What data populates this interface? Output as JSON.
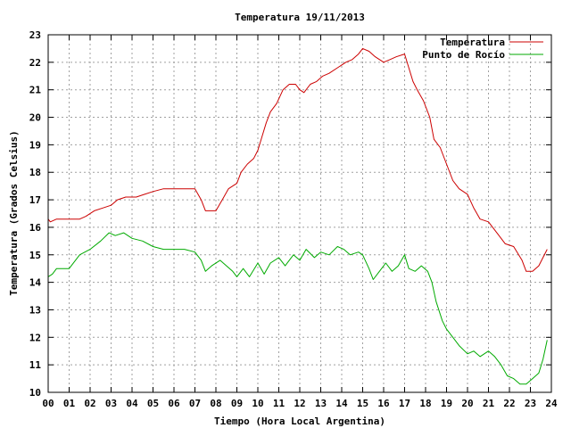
{
  "chart_data": {
    "type": "line",
    "title": "Temperatura 19/11/2013",
    "xlabel": "Tiempo (Hora Local Argentina)",
    "ylabel": "Temperatura (Grados Celsius)",
    "xlim": [
      0,
      24
    ],
    "ylim": [
      10,
      23
    ],
    "x_ticks": [
      "00",
      "01",
      "02",
      "03",
      "04",
      "05",
      "06",
      "07",
      "08",
      "09",
      "10",
      "11",
      "12",
      "13",
      "14",
      "15",
      "16",
      "17",
      "18",
      "19",
      "20",
      "21",
      "22",
      "23",
      "24"
    ],
    "y_ticks": [
      "10",
      "11",
      "12",
      "13",
      "14",
      "15",
      "16",
      "17",
      "18",
      "19",
      "20",
      "21",
      "22",
      "23"
    ],
    "grid": true,
    "legend_position": "top-right",
    "series": [
      {
        "name": "Temperatura",
        "color": "#cc0000",
        "points": [
          [
            0.0,
            16.3
          ],
          [
            0.1,
            16.2
          ],
          [
            0.4,
            16.3
          ],
          [
            1.0,
            16.3
          ],
          [
            1.5,
            16.3
          ],
          [
            1.8,
            16.4
          ],
          [
            2.2,
            16.6
          ],
          [
            2.6,
            16.7
          ],
          [
            3.0,
            16.8
          ],
          [
            3.3,
            17.0
          ],
          [
            3.7,
            17.1
          ],
          [
            4.2,
            17.1
          ],
          [
            4.6,
            17.2
          ],
          [
            5.0,
            17.3
          ],
          [
            5.5,
            17.4
          ],
          [
            6.0,
            17.4
          ],
          [
            6.5,
            17.4
          ],
          [
            7.0,
            17.4
          ],
          [
            7.3,
            17.0
          ],
          [
            7.5,
            16.6
          ],
          [
            8.0,
            16.6
          ],
          [
            8.3,
            17.0
          ],
          [
            8.6,
            17.4
          ],
          [
            9.0,
            17.6
          ],
          [
            9.2,
            18.0
          ],
          [
            9.5,
            18.3
          ],
          [
            9.8,
            18.5
          ],
          [
            10.0,
            18.8
          ],
          [
            10.2,
            19.3
          ],
          [
            10.4,
            19.8
          ],
          [
            10.6,
            20.2
          ],
          [
            10.9,
            20.5
          ],
          [
            11.2,
            21.0
          ],
          [
            11.5,
            21.2
          ],
          [
            11.8,
            21.2
          ],
          [
            12.0,
            21.0
          ],
          [
            12.2,
            20.9
          ],
          [
            12.5,
            21.2
          ],
          [
            12.8,
            21.3
          ],
          [
            13.1,
            21.5
          ],
          [
            13.4,
            21.6
          ],
          [
            13.8,
            21.8
          ],
          [
            14.2,
            22.0
          ],
          [
            14.5,
            22.1
          ],
          [
            14.8,
            22.3
          ],
          [
            15.0,
            22.5
          ],
          [
            15.3,
            22.4
          ],
          [
            15.6,
            22.2
          ],
          [
            16.0,
            22.0
          ],
          [
            16.3,
            22.1
          ],
          [
            16.6,
            22.2
          ],
          [
            17.0,
            22.3
          ],
          [
            17.2,
            21.8
          ],
          [
            17.4,
            21.3
          ],
          [
            17.6,
            21.0
          ],
          [
            17.9,
            20.6
          ],
          [
            18.2,
            20.0
          ],
          [
            18.4,
            19.2
          ],
          [
            18.7,
            18.9
          ],
          [
            19.0,
            18.3
          ],
          [
            19.3,
            17.7
          ],
          [
            19.6,
            17.4
          ],
          [
            20.0,
            17.2
          ],
          [
            20.3,
            16.7
          ],
          [
            20.6,
            16.3
          ],
          [
            21.0,
            16.2
          ],
          [
            21.4,
            15.8
          ],
          [
            21.8,
            15.4
          ],
          [
            22.2,
            15.3
          ],
          [
            22.6,
            14.8
          ],
          [
            22.8,
            14.4
          ],
          [
            23.1,
            14.4
          ],
          [
            23.4,
            14.6
          ],
          [
            23.6,
            14.9
          ],
          [
            23.8,
            15.2
          ]
        ]
      },
      {
        "name": "Punto de Rocío",
        "color": "#00aa00",
        "points": [
          [
            0.0,
            14.2
          ],
          [
            0.2,
            14.3
          ],
          [
            0.4,
            14.5
          ],
          [
            1.0,
            14.5
          ],
          [
            1.5,
            15.0
          ],
          [
            2.0,
            15.2
          ],
          [
            2.5,
            15.5
          ],
          [
            2.9,
            15.8
          ],
          [
            3.2,
            15.7
          ],
          [
            3.6,
            15.8
          ],
          [
            4.0,
            15.6
          ],
          [
            4.5,
            15.5
          ],
          [
            5.0,
            15.3
          ],
          [
            5.5,
            15.2
          ],
          [
            6.0,
            15.2
          ],
          [
            6.5,
            15.2
          ],
          [
            7.0,
            15.1
          ],
          [
            7.3,
            14.8
          ],
          [
            7.5,
            14.4
          ],
          [
            7.8,
            14.6
          ],
          [
            8.2,
            14.8
          ],
          [
            8.5,
            14.6
          ],
          [
            8.8,
            14.4
          ],
          [
            9.0,
            14.2
          ],
          [
            9.3,
            14.5
          ],
          [
            9.6,
            14.2
          ],
          [
            10.0,
            14.7
          ],
          [
            10.3,
            14.3
          ],
          [
            10.6,
            14.7
          ],
          [
            11.0,
            14.9
          ],
          [
            11.3,
            14.6
          ],
          [
            11.7,
            15.0
          ],
          [
            12.0,
            14.8
          ],
          [
            12.3,
            15.2
          ],
          [
            12.7,
            14.9
          ],
          [
            13.0,
            15.1
          ],
          [
            13.4,
            15.0
          ],
          [
            13.8,
            15.3
          ],
          [
            14.1,
            15.2
          ],
          [
            14.4,
            15.0
          ],
          [
            14.8,
            15.1
          ],
          [
            15.0,
            15.0
          ],
          [
            15.3,
            14.5
          ],
          [
            15.5,
            14.1
          ],
          [
            15.8,
            14.4
          ],
          [
            16.1,
            14.7
          ],
          [
            16.4,
            14.4
          ],
          [
            16.7,
            14.6
          ],
          [
            17.0,
            15.0
          ],
          [
            17.2,
            14.5
          ],
          [
            17.5,
            14.4
          ],
          [
            17.8,
            14.6
          ],
          [
            18.1,
            14.4
          ],
          [
            18.3,
            14.0
          ],
          [
            18.5,
            13.3
          ],
          [
            18.8,
            12.6
          ],
          [
            19.0,
            12.3
          ],
          [
            19.3,
            12.0
          ],
          [
            19.6,
            11.7
          ],
          [
            20.0,
            11.4
          ],
          [
            20.3,
            11.5
          ],
          [
            20.6,
            11.3
          ],
          [
            21.0,
            11.5
          ],
          [
            21.3,
            11.3
          ],
          [
            21.6,
            11.0
          ],
          [
            21.9,
            10.6
          ],
          [
            22.2,
            10.5
          ],
          [
            22.5,
            10.3
          ],
          [
            22.8,
            10.3
          ],
          [
            23.1,
            10.5
          ],
          [
            23.4,
            10.7
          ],
          [
            23.6,
            11.2
          ],
          [
            23.8,
            11.9
          ]
        ]
      }
    ]
  }
}
